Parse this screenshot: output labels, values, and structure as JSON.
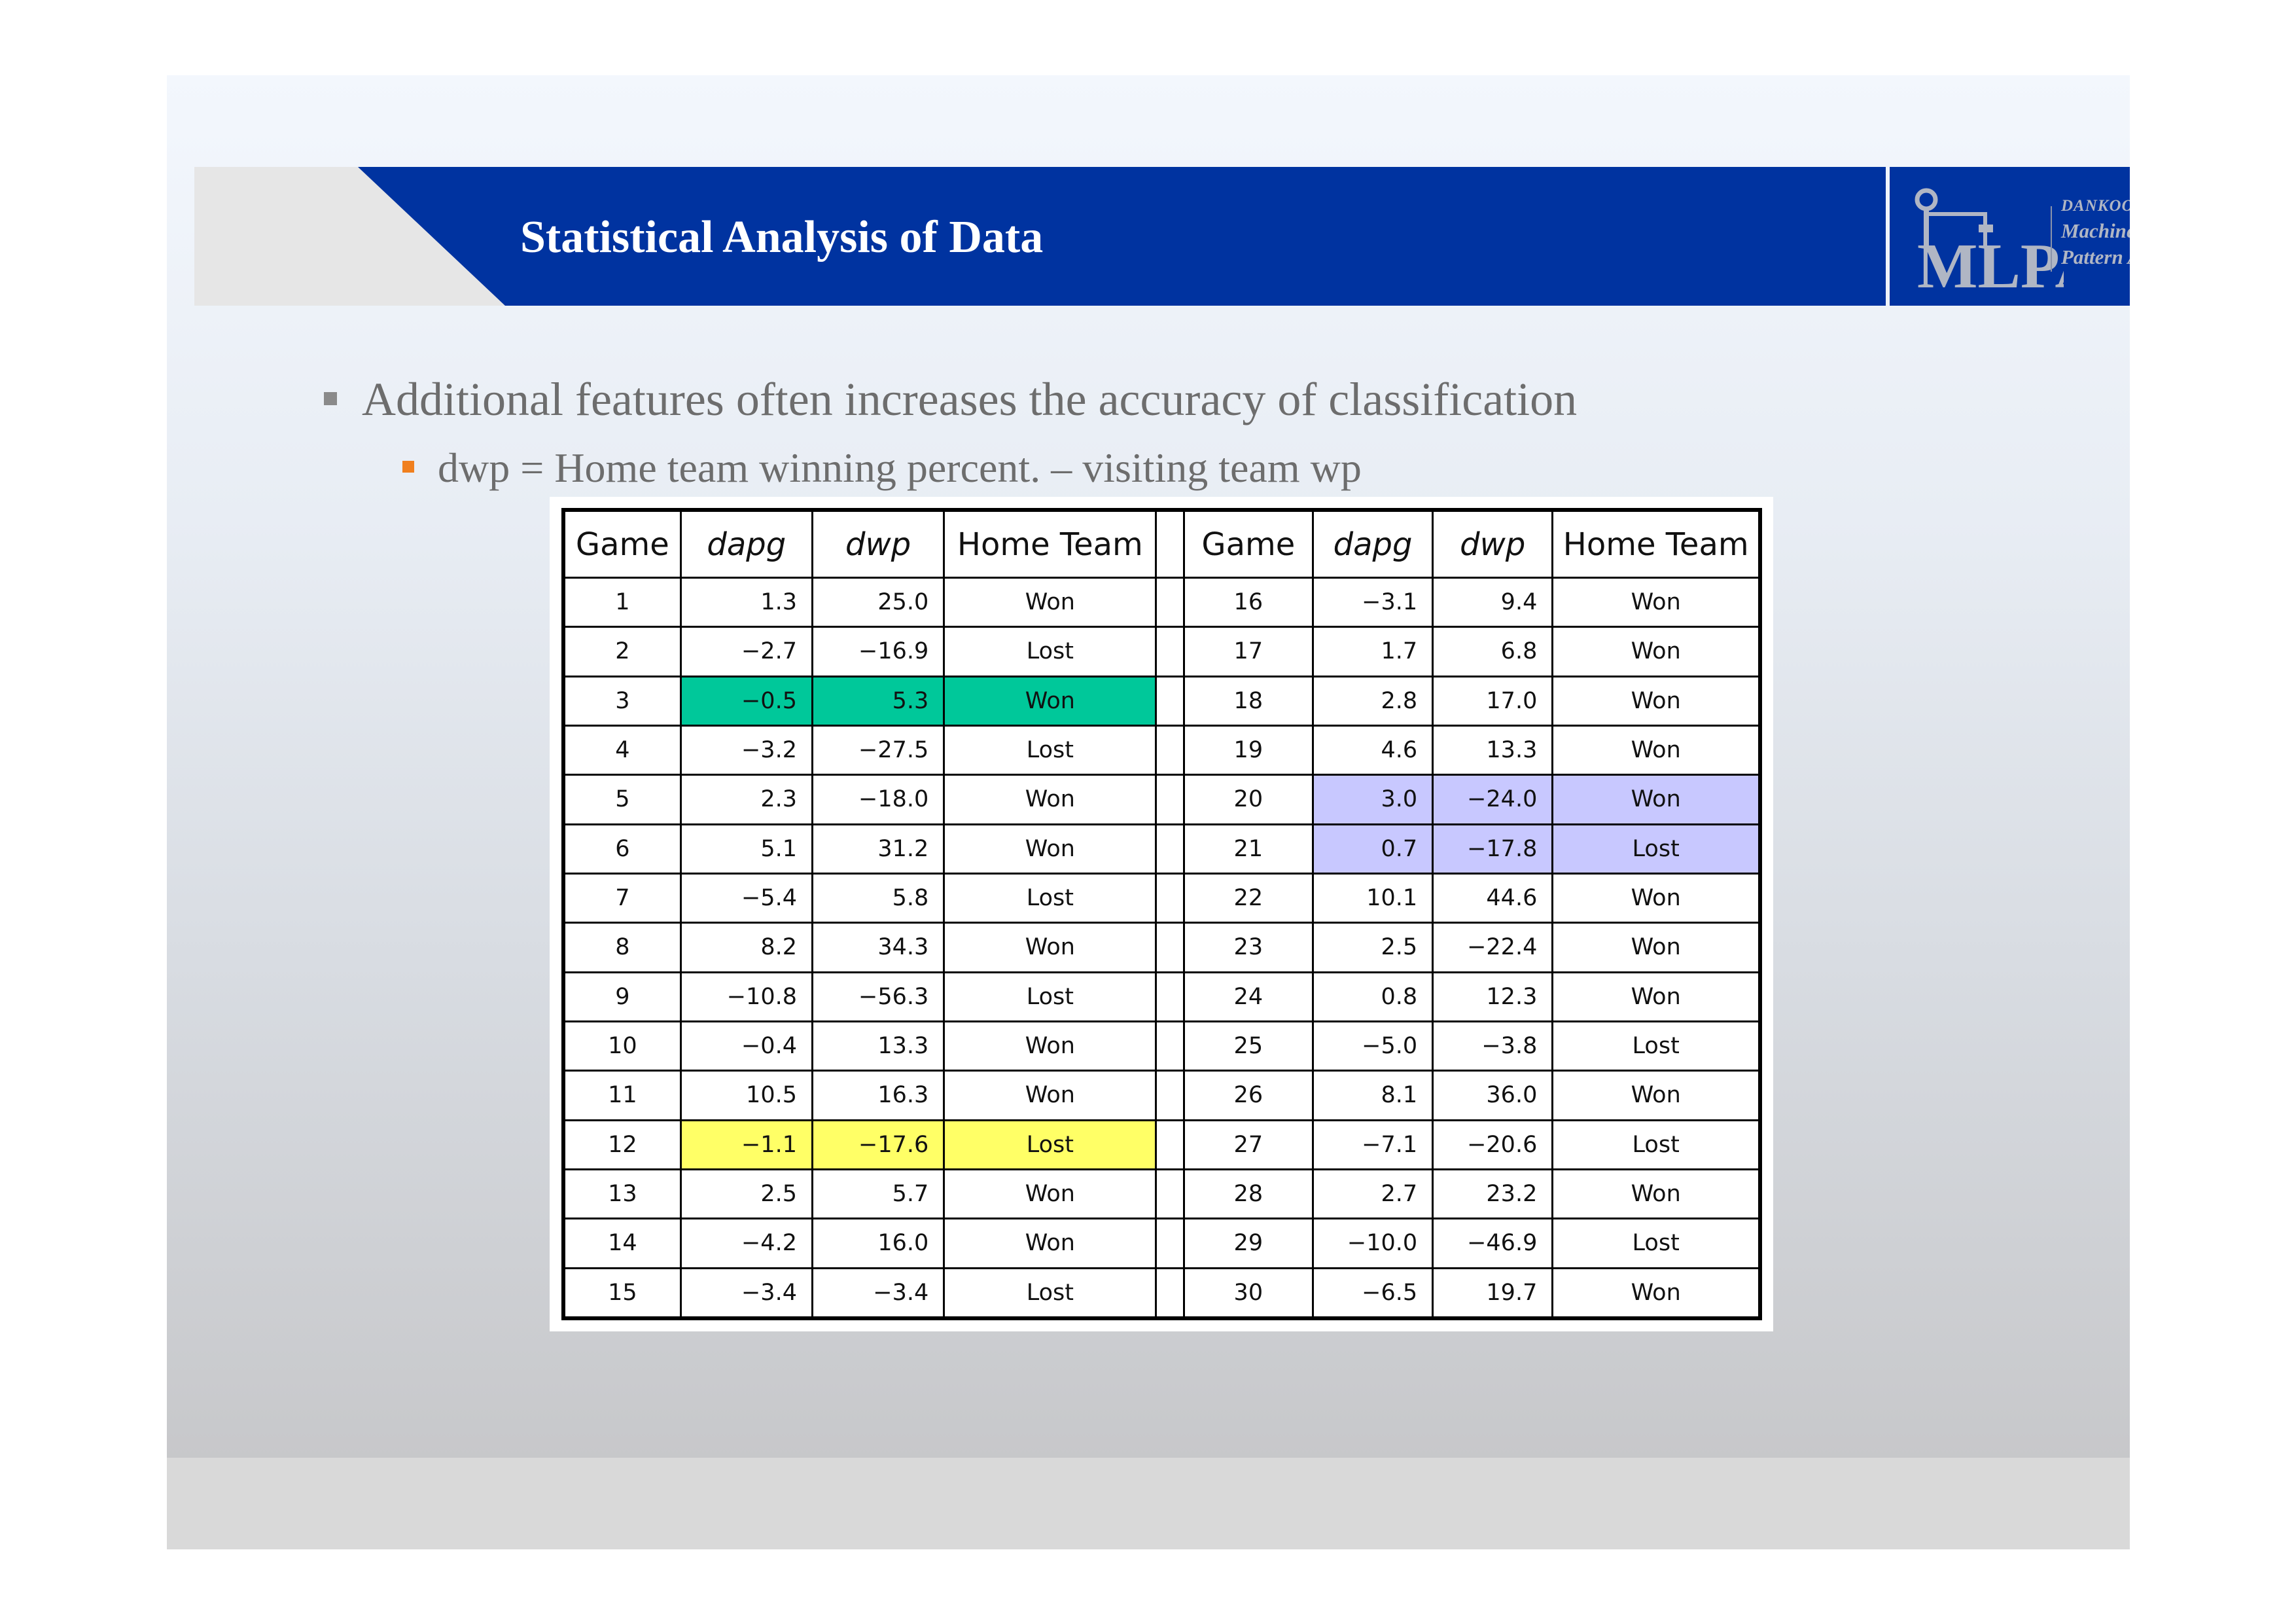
{
  "slide": {
    "title": "Statistical Analysis of Data",
    "logo": {
      "mark_text": "MLPA",
      "university": "DANKOOK UNIVERSITY",
      "lab_line1": "Machine Learning &",
      "lab_line2": "Pattern Analysis lab."
    },
    "bullets": [
      "Additional features often increases the accuracy of classification"
    ],
    "sub_bullets": [
      "dwp = Home team winning percent. – visiting team wp"
    ]
  },
  "table": {
    "headers": [
      "Game",
      "dapg",
      "dwp",
      "Home Team",
      "Game",
      "dapg",
      "dwp",
      "Home Team"
    ],
    "left_rows": [
      {
        "game": "1",
        "dapg": "1.3",
        "dwp": "25.0",
        "result": "Won",
        "highlight": ""
      },
      {
        "game": "2",
        "dapg": "−2.7",
        "dwp": "−16.9",
        "result": "Lost",
        "highlight": ""
      },
      {
        "game": "3",
        "dapg": "−0.5",
        "dwp": "5.3",
        "result": "Won",
        "highlight": "green"
      },
      {
        "game": "4",
        "dapg": "−3.2",
        "dwp": "−27.5",
        "result": "Lost",
        "highlight": ""
      },
      {
        "game": "5",
        "dapg": "2.3",
        "dwp": "−18.0",
        "result": "Won",
        "highlight": ""
      },
      {
        "game": "6",
        "dapg": "5.1",
        "dwp": "31.2",
        "result": "Won",
        "highlight": ""
      },
      {
        "game": "7",
        "dapg": "−5.4",
        "dwp": "5.8",
        "result": "Lost",
        "highlight": ""
      },
      {
        "game": "8",
        "dapg": "8.2",
        "dwp": "34.3",
        "result": "Won",
        "highlight": ""
      },
      {
        "game": "9",
        "dapg": "−10.8",
        "dwp": "−56.3",
        "result": "Lost",
        "highlight": ""
      },
      {
        "game": "10",
        "dapg": "−0.4",
        "dwp": "13.3",
        "result": "Won",
        "highlight": ""
      },
      {
        "game": "11",
        "dapg": "10.5",
        "dwp": "16.3",
        "result": "Won",
        "highlight": ""
      },
      {
        "game": "12",
        "dapg": "−1.1",
        "dwp": "−17.6",
        "result": "Lost",
        "highlight": "yellow"
      },
      {
        "game": "13",
        "dapg": "2.5",
        "dwp": "5.7",
        "result": "Won",
        "highlight": ""
      },
      {
        "game": "14",
        "dapg": "−4.2",
        "dwp": "16.0",
        "result": "Won",
        "highlight": ""
      },
      {
        "game": "15",
        "dapg": "−3.4",
        "dwp": "−3.4",
        "result": "Lost",
        "highlight": ""
      }
    ],
    "right_rows": [
      {
        "game": "16",
        "dapg": "−3.1",
        "dwp": "9.4",
        "result": "Won",
        "highlight": ""
      },
      {
        "game": "17",
        "dapg": "1.7",
        "dwp": "6.8",
        "result": "Won",
        "highlight": ""
      },
      {
        "game": "18",
        "dapg": "2.8",
        "dwp": "17.0",
        "result": "Won",
        "highlight": ""
      },
      {
        "game": "19",
        "dapg": "4.6",
        "dwp": "13.3",
        "result": "Won",
        "highlight": ""
      },
      {
        "game": "20",
        "dapg": "3.0",
        "dwp": "−24.0",
        "result": "Won",
        "highlight": "lavender"
      },
      {
        "game": "21",
        "dapg": "0.7",
        "dwp": "−17.8",
        "result": "Lost",
        "highlight": "lavender"
      },
      {
        "game": "22",
        "dapg": "10.1",
        "dwp": "44.6",
        "result": "Won",
        "highlight": ""
      },
      {
        "game": "23",
        "dapg": "2.5",
        "dwp": "−22.4",
        "result": "Won",
        "highlight": ""
      },
      {
        "game": "24",
        "dapg": "0.8",
        "dwp": "12.3",
        "result": "Won",
        "highlight": ""
      },
      {
        "game": "25",
        "dapg": "−5.0",
        "dwp": "−3.8",
        "result": "Lost",
        "highlight": ""
      },
      {
        "game": "26",
        "dapg": "8.1",
        "dwp": "36.0",
        "result": "Won",
        "highlight": ""
      },
      {
        "game": "27",
        "dapg": "−7.1",
        "dwp": "−20.6",
        "result": "Lost",
        "highlight": ""
      },
      {
        "game": "28",
        "dapg": "2.7",
        "dwp": "23.2",
        "result": "Won",
        "highlight": ""
      },
      {
        "game": "29",
        "dapg": "−10.0",
        "dwp": "−46.9",
        "result": "Lost",
        "highlight": ""
      },
      {
        "game": "30",
        "dapg": "−6.5",
        "dwp": "19.7",
        "result": "Won",
        "highlight": ""
      }
    ]
  },
  "colors": {
    "header_blue": "#0033a0",
    "highlight_green": "#00c89a",
    "highlight_yellow": "#ffff66",
    "highlight_lavender": "#c8c8ff",
    "sub_bullet_marker": "#f07f1e"
  }
}
